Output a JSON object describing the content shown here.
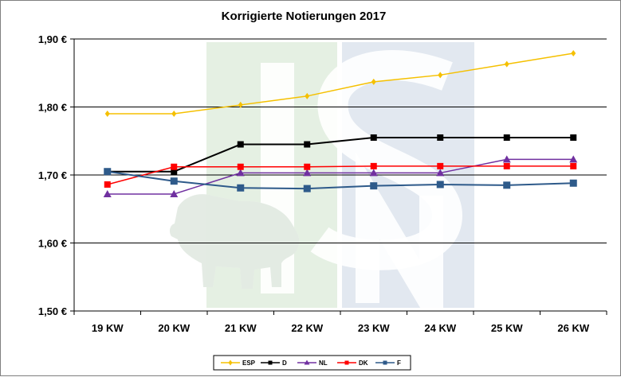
{
  "chart_data": {
    "type": "line",
    "title": "Korrigierte Notierungen 2017",
    "xlabel": "",
    "ylabel": "",
    "categories": [
      "19 KW",
      "20 KW",
      "21 KW",
      "22 KW",
      "23 KW",
      "24 KW",
      "25 KW",
      "26 KW"
    ],
    "ylim": [
      1.5,
      1.9
    ],
    "yticks": [
      {
        "value": 1.5,
        "label": "1,50 €"
      },
      {
        "value": 1.6,
        "label": "1,60 €"
      },
      {
        "value": 1.7,
        "label": "1,70 €"
      },
      {
        "value": 1.8,
        "label": "1,80 €"
      },
      {
        "value": 1.9,
        "label": "1,90 €"
      }
    ],
    "grid": true,
    "legend_position": "bottom",
    "series": [
      {
        "name": "ESP",
        "color": "#f5c000",
        "marker": "diamond",
        "values": [
          1.79,
          1.79,
          1.803,
          1.816,
          1.837,
          1.847,
          1.863,
          1.879
        ]
      },
      {
        "name": "D",
        "color": "#000000",
        "marker": "square",
        "values": [
          1.705,
          1.705,
          1.745,
          1.745,
          1.755,
          1.755,
          1.755,
          1.755
        ]
      },
      {
        "name": "NL",
        "color": "#7030a0",
        "marker": "triangle",
        "values": [
          1.672,
          1.672,
          1.703,
          1.703,
          1.703,
          1.703,
          1.723,
          1.723
        ]
      },
      {
        "name": "DK",
        "color": "#ff0000",
        "marker": "square",
        "values": [
          1.686,
          1.712,
          1.712,
          1.712,
          1.713,
          1.713,
          1.713,
          1.713
        ]
      },
      {
        "name": "F",
        "color": "#2e5a8a",
        "marker": "square",
        "values": [
          1.705,
          1.691,
          1.681,
          1.68,
          1.684,
          1.686,
          1.685,
          1.688
        ]
      }
    ],
    "watermark": {
      "text": "ISN"
    }
  }
}
